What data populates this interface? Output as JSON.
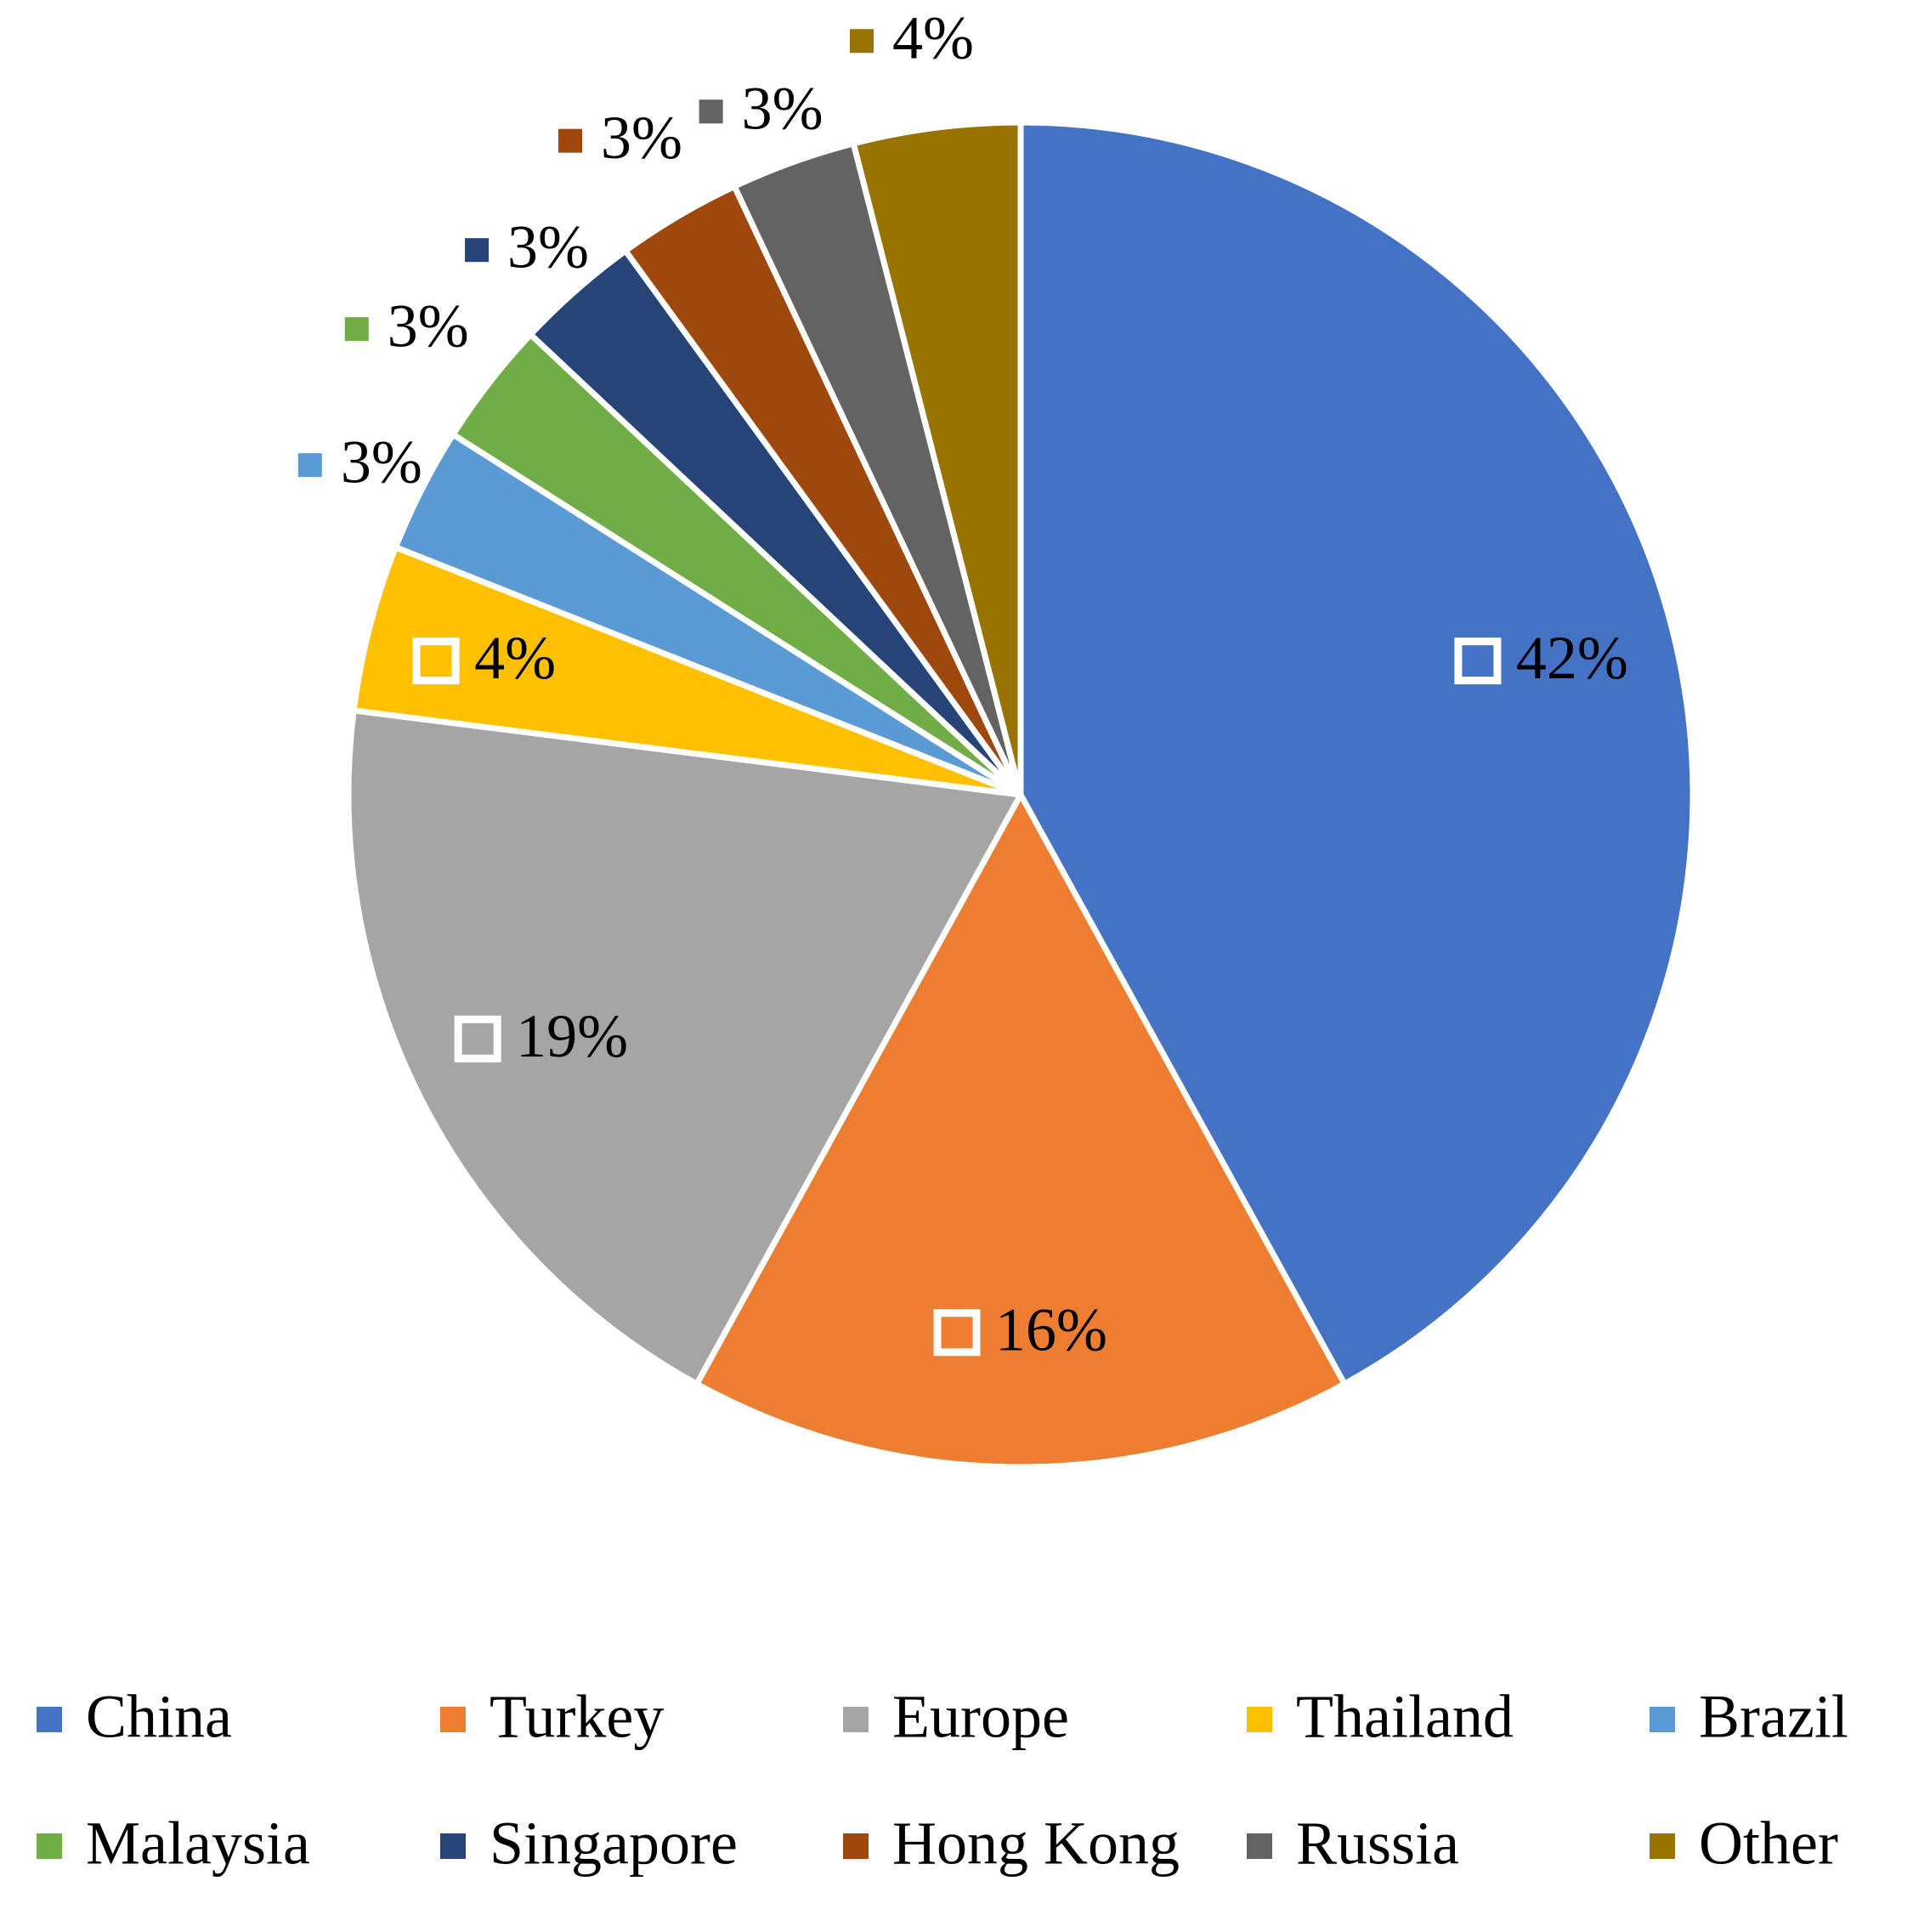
{
  "chart_data": {
    "type": "pie",
    "categories": [
      "China",
      "Turkey",
      "Europe",
      "Thailand",
      "Brazil",
      "Malaysia",
      "Singapore",
      "Hong Kong",
      "Russia",
      "Other"
    ],
    "values": [
      42,
      16,
      19,
      4,
      3,
      3,
      3,
      3,
      3,
      4
    ],
    "value_labels": [
      "42%",
      "16%",
      "19%",
      "4%",
      "3%",
      "3%",
      "3%",
      "3%",
      "3%",
      "4%"
    ],
    "colors": [
      "#4472c4",
      "#ed7d31",
      "#a5a5a5",
      "#ffc000",
      "#5b9bd5",
      "#70ad47",
      "#264478",
      "#9e480e",
      "#636363",
      "#997300"
    ],
    "legend": "bottom"
  }
}
